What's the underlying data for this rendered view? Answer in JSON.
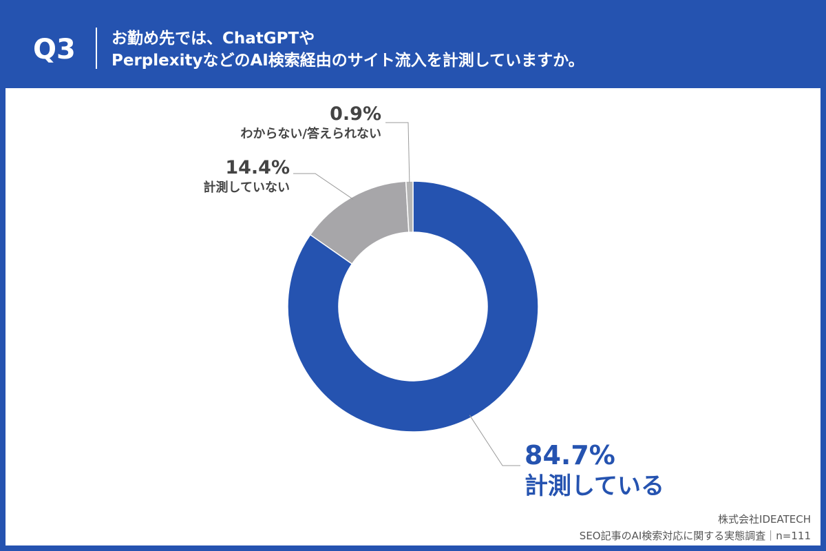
{
  "header": {
    "q_number": "Q3",
    "question_line1": "お勤め先では、ChatGPTや",
    "question_line2": "PerplexityなどのAI検索経由のサイト流入を計測していますか。"
  },
  "colors": {
    "background": "#2553b0",
    "primary_slice": "#2553b0",
    "secondary_slice": "#a7a6a9",
    "tertiary_slice": "#b5b5b5"
  },
  "chart_data": {
    "type": "pie",
    "donut": true,
    "slices": [
      {
        "label": "計測している",
        "value": 84.7,
        "display": "84.7%",
        "color": "#2553b0"
      },
      {
        "label": "計測していない",
        "value": 14.4,
        "display": "14.4%",
        "color": "#a7a6a9"
      },
      {
        "label": "わからない/答えられない",
        "value": 0.9,
        "display": "0.9%",
        "color": "#b5b5b5"
      }
    ],
    "start": "12 o'clock",
    "direction": "clockwise",
    "title": "",
    "legend": "none"
  },
  "footer": {
    "company": "株式会社IDEATECH",
    "survey": "SEO記事のAI検索対応に関する実態調査｜n=111"
  }
}
